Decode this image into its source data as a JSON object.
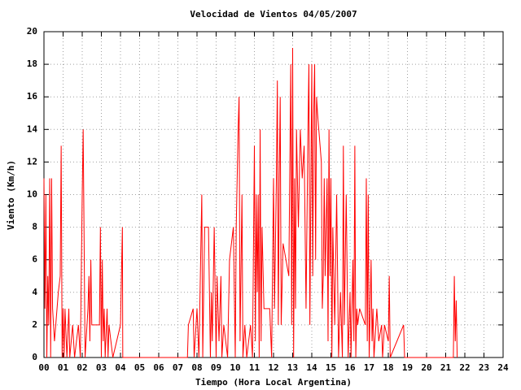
{
  "chart_data": {
    "type": "line",
    "title": "Velocidad de Vientos 04/05/2007",
    "xlabel": "Tiempo (Hora Local Argentina)",
    "ylabel": "Viento (Km/h)",
    "color": "#ff0000",
    "grid": true,
    "xlim": [
      0,
      24
    ],
    "ylim": [
      0,
      20
    ],
    "xticks": [
      {
        "value": 0,
        "label": "00"
      },
      {
        "value": 1,
        "label": "01"
      },
      {
        "value": 2,
        "label": "02"
      },
      {
        "value": 3,
        "label": "03"
      },
      {
        "value": 4,
        "label": "04"
      },
      {
        "value": 5,
        "label": "05"
      },
      {
        "value": 6,
        "label": "06"
      },
      {
        "value": 7,
        "label": "07"
      },
      {
        "value": 8,
        "label": "08"
      },
      {
        "value": 9,
        "label": "09"
      },
      10,
      11,
      12,
      13,
      14,
      15,
      16,
      17,
      18,
      19,
      20,
      21,
      22,
      23,
      24
    ],
    "yticks": [
      0,
      2,
      4,
      6,
      8,
      10,
      12,
      14,
      16,
      18,
      20
    ],
    "x": [
      0,
      0.05,
      0.1,
      0.15,
      0.2,
      0.25,
      0.3,
      0.35,
      0.4,
      0.45,
      0.55,
      0.75,
      0.85,
      0.9,
      0.95,
      1.0,
      1.05,
      1.1,
      1.15,
      1.2,
      1.3,
      1.35,
      1.5,
      1.6,
      1.8,
      1.9,
      2.0,
      2.05,
      2.1,
      2.15,
      2.3,
      2.35,
      2.4,
      2.45,
      2.5,
      2.9,
      2.95,
      3.0,
      3.05,
      3.1,
      3.15,
      3.2,
      3.3,
      3.35,
      3.4,
      3.6,
      4.0,
      4.05,
      4.1,
      4.12,
      7.5,
      7.55,
      7.8,
      7.85,
      8.0,
      8.1,
      8.25,
      8.3,
      8.4,
      8.6,
      8.7,
      8.75,
      8.8,
      8.9,
      9.0,
      9.05,
      9.15,
      9.25,
      9.3,
      9.4,
      9.6,
      9.7,
      9.9,
      10.0,
      10.05,
      10.15,
      10.2,
      10.25,
      10.35,
      10.4,
      10.5,
      10.6,
      10.8,
      10.9,
      11.0,
      11.05,
      11.1,
      11.15,
      11.2,
      11.25,
      11.3,
      11.35,
      11.4,
      11.5,
      11.8,
      11.9,
      12.0,
      12.05,
      12.15,
      12.2,
      12.25,
      12.3,
      12.35,
      12.4,
      12.5,
      12.8,
      12.9,
      12.95,
      13.0,
      13.05,
      13.1,
      13.15,
      13.2,
      13.3,
      13.4,
      13.5,
      13.6,
      13.7,
      13.8,
      13.85,
      13.9,
      14.0,
      14.05,
      14.1,
      14.15,
      14.2,
      14.25,
      14.3,
      14.5,
      14.55,
      14.6,
      14.65,
      14.7,
      14.8,
      14.85,
      14.9,
      14.95,
      15.0,
      15.05,
      15.1,
      15.2,
      15.3,
      15.4,
      15.5,
      15.6,
      15.65,
      15.7,
      15.8,
      15.9,
      16.0,
      16.05,
      16.15,
      16.2,
      16.25,
      16.3,
      16.35,
      16.4,
      16.5,
      16.8,
      16.85,
      16.9,
      16.95,
      17.0,
      17.1,
      17.15,
      17.2,
      17.25,
      17.4,
      17.5,
      17.65,
      17.7,
      17.8,
      18.0,
      18.05,
      18.1,
      18.8,
      18.85,
      21.4,
      21.45,
      21.5,
      21.55,
      21.6
    ],
    "values": [
      11,
      3,
      10,
      0,
      5,
      2,
      11,
      0,
      11,
      3,
      1,
      4,
      5,
      13,
      0,
      3,
      0,
      3,
      1.5,
      0,
      3,
      0,
      2,
      0,
      2,
      0,
      10,
      14,
      7,
      0,
      3,
      5,
      1,
      6,
      2,
      2,
      8,
      0,
      6,
      1,
      3,
      0,
      3,
      0,
      2,
      0,
      2,
      5,
      8,
      0,
      0,
      2,
      3,
      0,
      3,
      0,
      10,
      0,
      8,
      8,
      0,
      4,
      1,
      8,
      0,
      5,
      1,
      5,
      0,
      2,
      0,
      6,
      8,
      0,
      8,
      14,
      16,
      1,
      10,
      0,
      2,
      0,
      2,
      0,
      13,
      1,
      10,
      4,
      10,
      0,
      14,
      1,
      8,
      3,
      3,
      0,
      11,
      3,
      11,
      17,
      2,
      11,
      16,
      2,
      7,
      5,
      18,
      2,
      19,
      0,
      11,
      3,
      14,
      8,
      14,
      11,
      13,
      3,
      14,
      18,
      2,
      18,
      5,
      15,
      18,
      6,
      16,
      15,
      12,
      3,
      5,
      11,
      5,
      11,
      1,
      14,
      5,
      11,
      0,
      8,
      2,
      10,
      0,
      4,
      0,
      13,
      2,
      10,
      0,
      4,
      0,
      6,
      1,
      13,
      0,
      3,
      2,
      3,
      2,
      11,
      1,
      10,
      0,
      6,
      1,
      3,
      0,
      3,
      1,
      2,
      0,
      2,
      1,
      5,
      0,
      2,
      0,
      0,
      5,
      1,
      3.5,
      0
    ]
  }
}
